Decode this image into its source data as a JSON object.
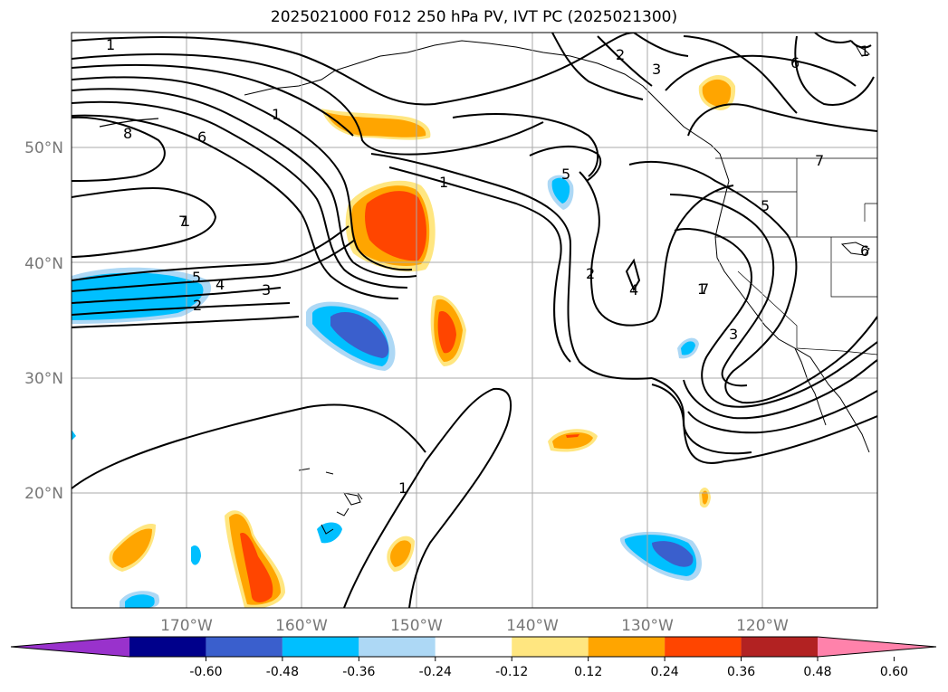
{
  "title": "2025021000 F012 250 hPa PV, IVT PC (2025021300)",
  "map": {
    "lon_range": [
      -180,
      -110
    ],
    "lat_range": [
      10,
      60
    ],
    "lat_labels": [
      "20°N",
      "30°N",
      "40°N",
      "50°N"
    ],
    "lon_labels": [
      "170°W",
      "160°W",
      "150°W",
      "140°W",
      "130°W",
      "120°W"
    ],
    "gridlines": true,
    "contour_labels": [
      "1",
      "1",
      "1",
      "1",
      "1",
      "1",
      "1",
      "2",
      "2",
      "2",
      "3",
      "3",
      "3",
      "4",
      "4",
      "5",
      "5",
      "5",
      "6",
      "6",
      "6",
      "7",
      "7",
      "7",
      "8"
    ]
  },
  "colorbar": {
    "levels": [
      "-0.60",
      "-0.48",
      "-0.36",
      "-0.24",
      "-0.12",
      "0.12",
      "0.24",
      "0.36",
      "0.48",
      "0.60"
    ],
    "colors": [
      "#9932cc",
      "#00008b",
      "#3a5fcd",
      "#00bfff",
      "#add8f5",
      "#ffffff",
      "#ffe680",
      "#ffa500",
      "#ff4500",
      "#b22222",
      "#ff82ab"
    ],
    "extend": "both"
  }
}
